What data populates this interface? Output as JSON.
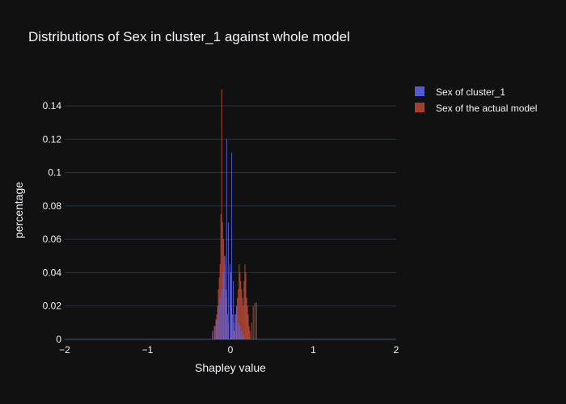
{
  "chart_data": {
    "type": "bar",
    "title": "Distributions of Sex in cluster_1 against whole model",
    "xlabel": "Shapley value",
    "ylabel": "percentage",
    "xlim": [
      -2,
      2
    ],
    "ylim": [
      0,
      0.155
    ],
    "xticks": [
      -2,
      -1,
      0,
      1,
      2
    ],
    "xtick_labels": [
      "−2",
      "−1",
      "0",
      "1",
      "2"
    ],
    "yticks": [
      0,
      0.02,
      0.04,
      0.06,
      0.08,
      0.1,
      0.12,
      0.14
    ],
    "ytick_labels": [
      "0",
      "0.02",
      "0.04",
      "0.06",
      "0.08",
      "0.1",
      "0.12",
      "0.14"
    ],
    "grid": true,
    "legend_position": "top-right",
    "bin_width": 0.01,
    "colors": {
      "background": "#111111",
      "grid": "#283442",
      "text": "#f2f5fa"
    },
    "series": [
      {
        "name": "Sex of the actual model",
        "color": "#c44e3a",
        "opacity": 0.85,
        "x": [
          -0.22,
          -0.2,
          -0.18,
          -0.17,
          -0.16,
          -0.15,
          -0.14,
          -0.13,
          -0.12,
          -0.11,
          -0.1,
          -0.09,
          -0.08,
          -0.07,
          -0.06,
          -0.05,
          -0.04,
          -0.03,
          0.0,
          0.01,
          0.02,
          0.03,
          0.04,
          0.05,
          0.06,
          0.07,
          0.08,
          0.09,
          0.1,
          0.11,
          0.12,
          0.13,
          0.14,
          0.15,
          0.16,
          0.17,
          0.18,
          0.19,
          0.2,
          0.21,
          0.22,
          0.23,
          0.25,
          0.27,
          0.29,
          0.31
        ],
        "values": [
          0.005,
          0.008,
          0.012,
          0.015,
          0.02,
          0.03,
          0.037,
          0.045,
          0.075,
          0.15,
          0.07,
          0.06,
          0.05,
          0.045,
          0.03,
          0.025,
          0.015,
          0.01,
          0.04,
          0.02,
          0.015,
          0.01,
          0.005,
          0.01,
          0.015,
          0.02,
          0.025,
          0.03,
          0.045,
          0.04,
          0.035,
          0.03,
          0.025,
          0.02,
          0.035,
          0.045,
          0.04,
          0.025,
          0.02,
          0.015,
          0.008,
          0.005,
          0.01,
          0.02,
          0.022,
          0.022
        ]
      },
      {
        "name": "Sex of cluster_1",
        "color": "#636efa",
        "opacity": 0.75,
        "x": [
          -0.22,
          -0.19,
          -0.17,
          -0.15,
          -0.13,
          -0.11,
          -0.09,
          -0.07,
          -0.05,
          -0.03,
          -0.01,
          0.01,
          0.03,
          0.05,
          0.07,
          0.09,
          0.11,
          0.13,
          0.15
        ],
        "values": [
          0.005,
          0.008,
          0.012,
          0.02,
          0.025,
          0.03,
          0.04,
          0.05,
          0.12,
          0.07,
          0.045,
          0.112,
          0.035,
          0.015,
          0.02,
          0.01,
          0.008,
          0.005,
          0.003
        ]
      }
    ],
    "legend": [
      {
        "label": "Sex of cluster_1",
        "color": "#636efa"
      },
      {
        "label": "Sex of the actual model",
        "color": "#c44e3a"
      }
    ]
  }
}
